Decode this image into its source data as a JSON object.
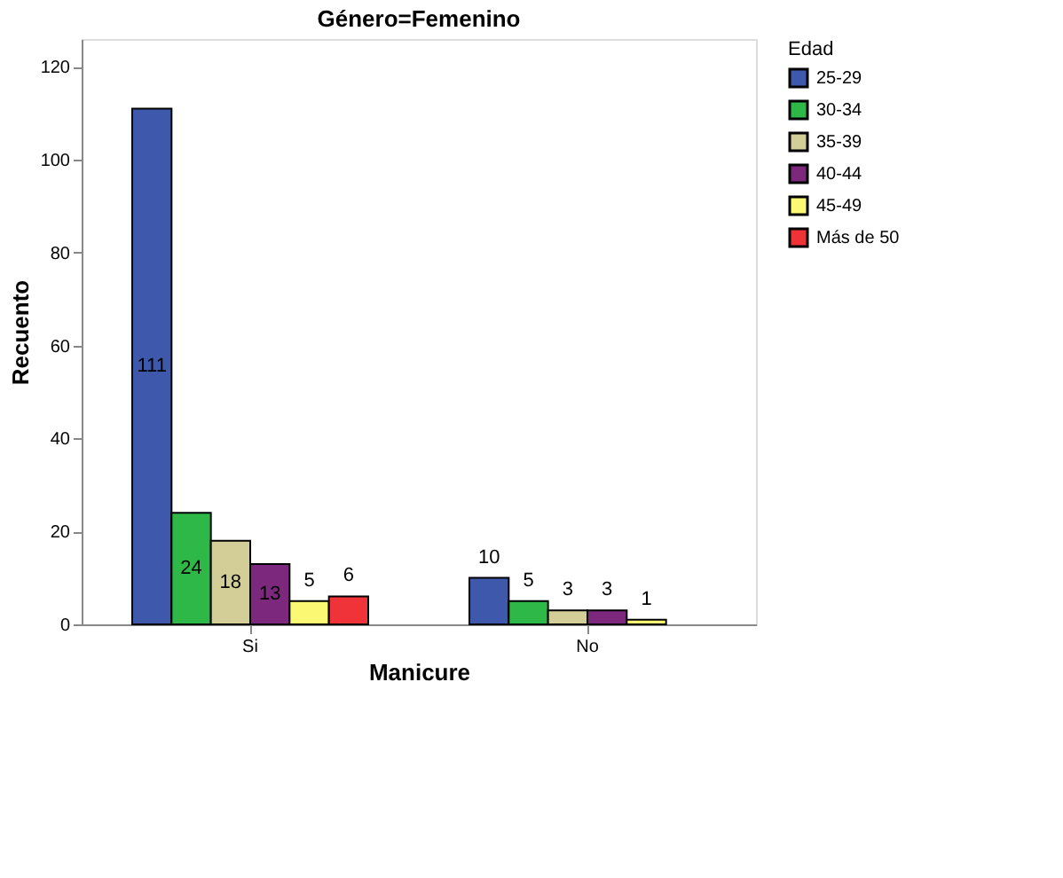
{
  "chart_data": {
    "type": "bar",
    "title": "Género=Femenino",
    "xlabel": "Manicure",
    "ylabel": "Recuento",
    "legend_title": "Edad",
    "categories": [
      "Si",
      "No"
    ],
    "series": [
      {
        "name": "25-29",
        "color": "#3e58ac",
        "values": [
          111,
          10
        ]
      },
      {
        "name": "30-34",
        "color": "#2eb848",
        "values": [
          24,
          5
        ]
      },
      {
        "name": "35-39",
        "color": "#d3ce97",
        "values": [
          18,
          3
        ]
      },
      {
        "name": "40-44",
        "color": "#7c287d",
        "values": [
          13,
          3
        ]
      },
      {
        "name": "45-49",
        "color": "#fbf873",
        "values": [
          5,
          1
        ]
      },
      {
        "name": "Más de 50",
        "color": "#ef3338",
        "values": [
          6,
          null
        ]
      }
    ],
    "ylim": [
      0,
      126
    ],
    "yticks": [
      0,
      20,
      40,
      60,
      80,
      100,
      120
    ],
    "grid": false,
    "legend": "top right",
    "data_labels": true
  }
}
